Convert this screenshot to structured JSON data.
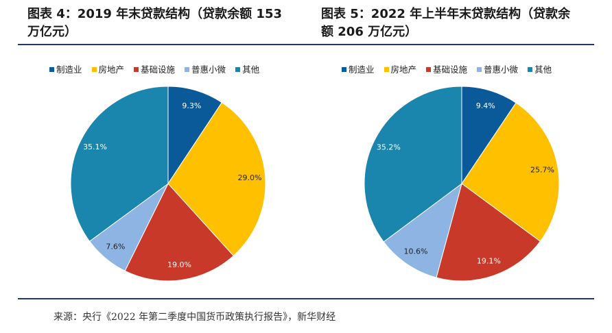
{
  "charts": [
    {
      "title_lines": [
        "图表 4：2019 年末贷款结构（贷款余额 153",
        "万亿元）"
      ]
    },
    {
      "title_lines": [
        "图表 5：2022 年上半年末贷款结构（贷款余",
        "额 206 万亿元）"
      ]
    }
  ],
  "chart_data": [
    {
      "type": "pie",
      "title": "图表 4：2019 年末贷款结构（贷款余额 153 万亿元）",
      "categories": [
        "制造业",
        "房地产",
        "基础设施",
        "普惠小微",
        "其他"
      ],
      "values": [
        9.3,
        29.0,
        19.0,
        7.6,
        35.1
      ],
      "labels": [
        "9.3%",
        "29.0%",
        "19.0%",
        "7.6%",
        "35.1%"
      ],
      "colors": [
        "#0a5a9a",
        "#ffc000",
        "#c9392a",
        "#8eb4e3",
        "#1a85ad"
      ],
      "legend": "top"
    },
    {
      "type": "pie",
      "title": "图表 5：2022 年上半年末贷款结构（贷款余额 206 万亿元）",
      "categories": [
        "制造业",
        "房地产",
        "基础设施",
        "普惠小微",
        "其他"
      ],
      "values": [
        9.4,
        25.7,
        19.1,
        10.6,
        35.2
      ],
      "labels": [
        "9.4%",
        "25.7%",
        "19.1%",
        "10.6%",
        "35.2%"
      ],
      "colors": [
        "#0a5a9a",
        "#ffc000",
        "#c9392a",
        "#8eb4e3",
        "#1a85ad"
      ],
      "legend": "top"
    }
  ],
  "source": "来源：央行《2022 年第二季度中国货币政策执行报告》，新华财经"
}
